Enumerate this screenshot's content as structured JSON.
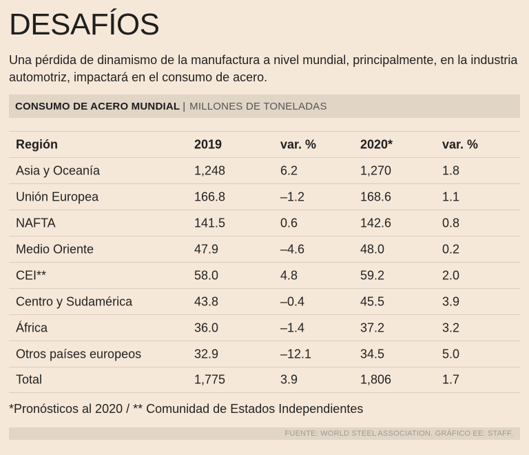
{
  "header": {
    "title": "DESAFÍOS",
    "subtitle": "Una pérdida de dinamismo de la manufactura a nivel mundial, principalmente, en la industria automotriz, impactará en el consumo de acero."
  },
  "section": {
    "label_bold": "CONSUMO DE ACERO MUNDIAL",
    "separator": "|",
    "label_light": "MILLONES DE TONELADAS"
  },
  "chart_data": {
    "type": "table",
    "title": "CONSUMO DE ACERO MUNDIAL",
    "subtitle": "MILLONES DE TONELADAS",
    "columns": [
      "Región",
      "2019",
      "var. %",
      "2020*",
      "var. %"
    ],
    "rows": [
      [
        "Asia y Oceanía",
        "1,248",
        "6.2",
        "1,270",
        "1.8"
      ],
      [
        "Unión Europea",
        "166.8",
        "–1.2",
        "168.6",
        "1.1"
      ],
      [
        "NAFTA",
        "141.5",
        "0.6",
        "142.6",
        "0.8"
      ],
      [
        "Medio Oriente",
        "47.9",
        "–4.6",
        "48.0",
        "0.2"
      ],
      [
        "CEI**",
        "58.0",
        "4.8",
        "59.2",
        "2.0"
      ],
      [
        "Centro y Sudamérica",
        "43.8",
        "–0.4",
        "45.5",
        "3.9"
      ],
      [
        "África",
        "36.0",
        "–1.4",
        "37.2",
        "3.2"
      ],
      [
        "Otros países europeos",
        "32.9",
        "–12.1",
        "34.5",
        "5.0"
      ],
      [
        "Total",
        "1,775",
        "3.9",
        "1,806",
        "1.7"
      ]
    ]
  },
  "footer": {
    "footnote": "*Pronósticos al 2020 / ** Comunidad de Estados Independientes",
    "source": "FUENTE: WORLD STEEL ASSOCIATION. GRÁFICO EE: STAFF."
  }
}
